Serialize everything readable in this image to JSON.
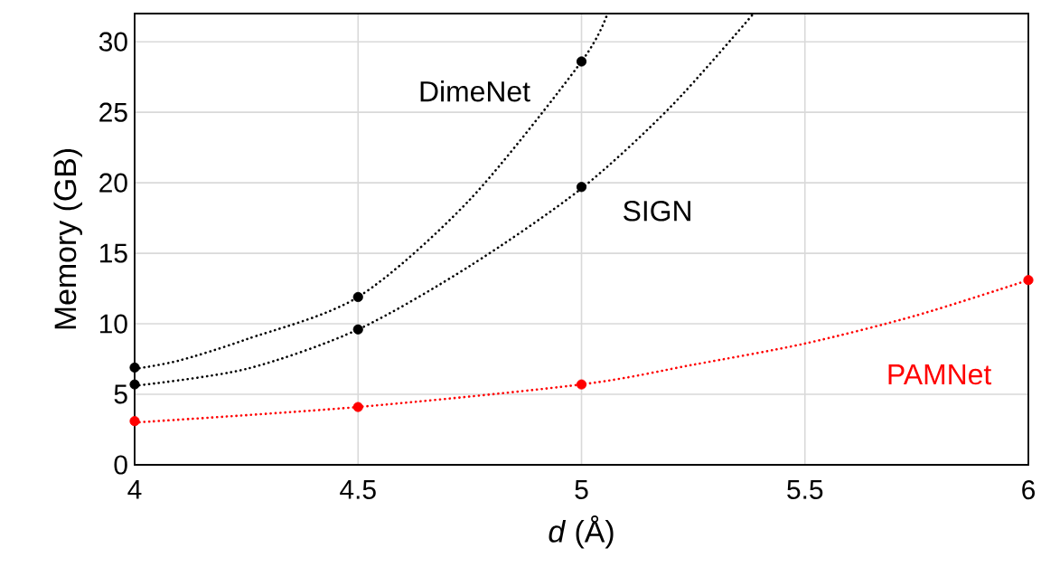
{
  "chart_data": {
    "type": "scatter",
    "xlabel": "*d* (Å)",
    "ylabel": "Memory (GB)",
    "xlim": [
      4,
      6
    ],
    "ylim": [
      0,
      32
    ],
    "xticks": [
      4,
      4.5,
      5,
      5.5,
      6
    ],
    "yticks": [
      0,
      5,
      10,
      15,
      20,
      25,
      30
    ],
    "grid": true,
    "series": [
      {
        "type": "line",
        "color": "#000000",
        "line_style": "dotted",
        "marker": "none",
        "x": [
          4,
          4.1,
          4.25,
          4.5,
          4.75,
          5,
          5.058
        ],
        "values": [
          6.8,
          7.4,
          8.9,
          11.9,
          18.8,
          28.6,
          32
        ]
      },
      {
        "type": "line",
        "color": "#000000",
        "line_style": "dotted",
        "marker": "none",
        "x": [
          4,
          4.25,
          4.5,
          4.75,
          5,
          5.2,
          5.385
        ],
        "values": [
          5.6,
          6.8,
          9.6,
          14.1,
          19.6,
          25.4,
          32
        ]
      },
      {
        "type": "line",
        "color": "#ff0000",
        "line_style": "dotted",
        "marker": "none",
        "x": [
          4,
          4.5,
          5,
          5.25,
          5.5,
          5.75,
          6
        ],
        "values": [
          3.0,
          4.1,
          5.7,
          7.1,
          8.6,
          10.6,
          13.1
        ]
      },
      {
        "name": "DimeNet",
        "color": "#000000",
        "marker": "circle",
        "x": [
          4,
          4.5,
          5
        ],
        "values": [
          6.9,
          11.9,
          28.6
        ]
      },
      {
        "name": "SIGN",
        "color": "#000000",
        "marker": "circle",
        "x": [
          4,
          4.5,
          5
        ],
        "values": [
          5.7,
          9.6,
          19.7
        ]
      },
      {
        "name": "PAMNet",
        "color": "#ff0000",
        "marker": "circle",
        "x": [
          4,
          4.5,
          5,
          6
        ],
        "values": [
          3.1,
          4.1,
          5.7,
          13.1
        ]
      }
    ]
  }
}
